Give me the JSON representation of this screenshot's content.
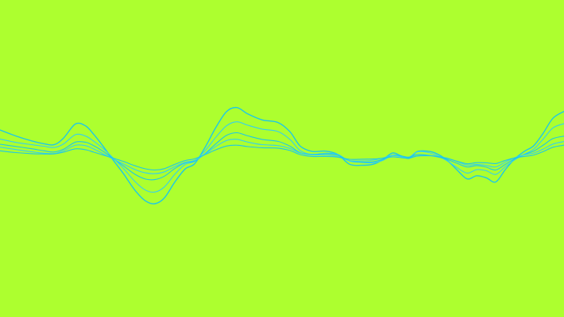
{
  "theme": {
    "background_color": "#adff2f",
    "line_color": "#1ec8e6",
    "line_color_secondary": "#35d0ee"
  },
  "wave": {
    "line_count": 5,
    "amplitude_scales": [
      1.0,
      0.72,
      0.48,
      0.36,
      0.26
    ]
  }
}
